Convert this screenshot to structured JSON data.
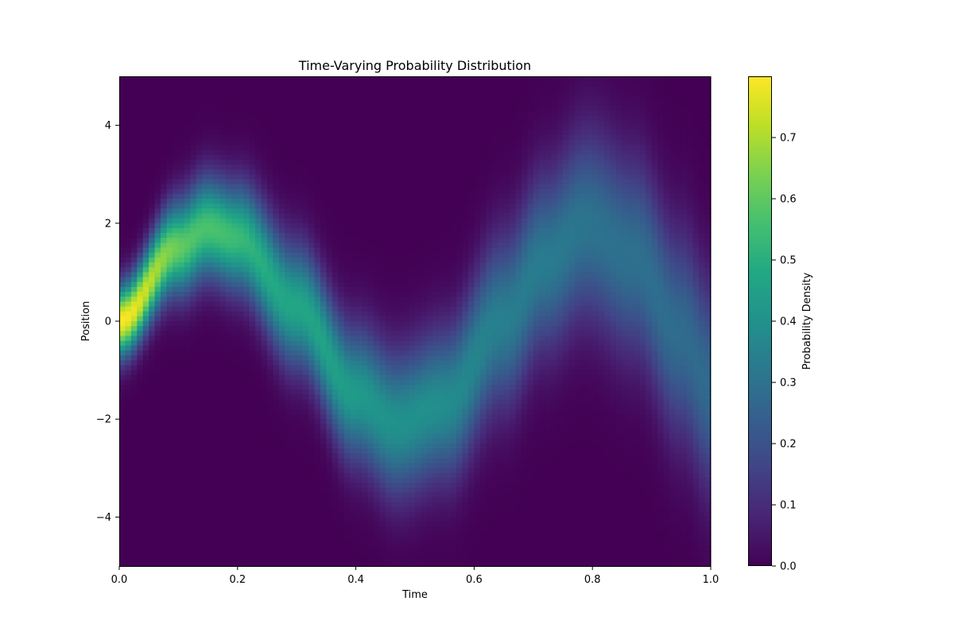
{
  "chart_data": {
    "type": "heatmap",
    "title": "Time-Varying Probability Distribution",
    "xlabel": "Time",
    "ylabel": "Position",
    "colorbar_label": "Probability Density",
    "colormap": "viridis",
    "xlim": [
      0.0,
      1.0
    ],
    "ylim": [
      -5.0,
      5.0
    ],
    "clim": [
      0.0,
      0.8
    ],
    "x_ticks": [
      0.0,
      0.2,
      0.4,
      0.6,
      0.8,
      1.0
    ],
    "x_tick_labels": [
      "0.0",
      "0.2",
      "0.4",
      "0.6",
      "0.8",
      "1.0"
    ],
    "y_ticks": [
      -4,
      -2,
      0,
      2,
      4
    ],
    "y_tick_labels": [
      "−4",
      "−2",
      "0",
      "2",
      "4"
    ],
    "colorbar_ticks": [
      0.0,
      0.1,
      0.2,
      0.3,
      0.4,
      0.5,
      0.6,
      0.7
    ],
    "colorbar_tick_labels": [
      "0.0",
      "0.1",
      "0.2",
      "0.3",
      "0.4",
      "0.5",
      "0.6",
      "0.7"
    ],
    "distribution": {
      "form": "gaussian",
      "mean_control_points": {
        "time": [
          0.0,
          0.1,
          0.15,
          0.2,
          0.3,
          0.4,
          0.47,
          0.55,
          0.65,
          0.72,
          0.79,
          0.87,
          0.95,
          1.0
        ],
        "mean": [
          0.0,
          1.5,
          1.9,
          1.7,
          0.3,
          -1.5,
          -2.1,
          -1.7,
          0.0,
          1.2,
          1.95,
          1.3,
          -0.3,
          -1.3
        ]
      },
      "std_control_points": {
        "time": [
          0.0,
          0.15,
          0.3,
          0.5,
          0.7,
          0.85,
          1.0
        ],
        "std": [
          0.5,
          0.7,
          0.85,
          1.0,
          1.2,
          1.35,
          1.45
        ]
      }
    }
  }
}
